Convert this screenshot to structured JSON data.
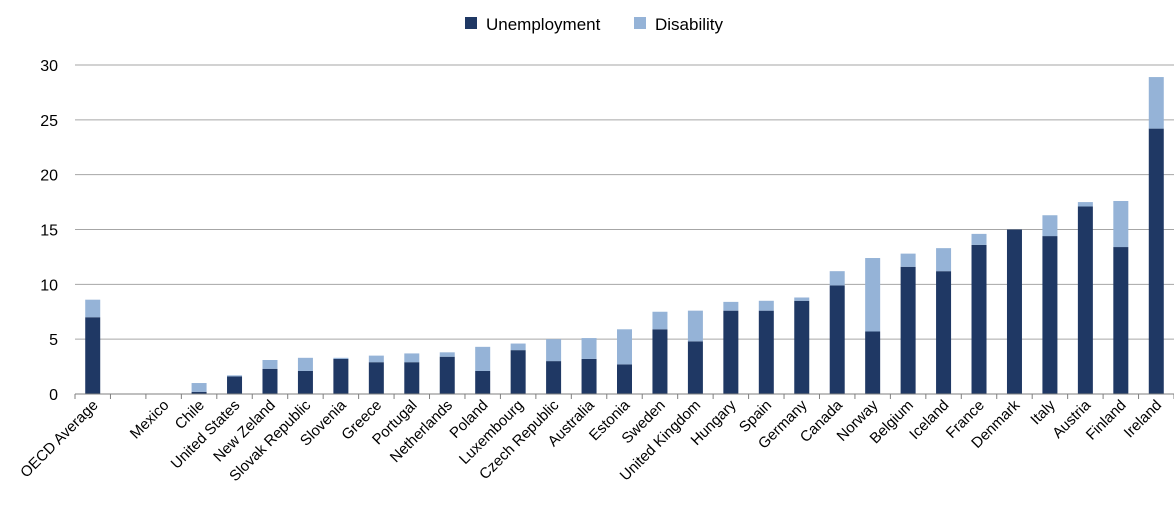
{
  "chart_data": {
    "type": "bar",
    "stacked": true,
    "title": "",
    "xlabel": "",
    "ylabel": "",
    "ylim": [
      0,
      30
    ],
    "yticks": [
      0,
      5,
      10,
      15,
      20,
      25,
      30
    ],
    "grid": true,
    "legend_position": "top-center",
    "categories": [
      "OECD Average",
      "",
      "Mexico",
      "Chile",
      "United States",
      "New Zeland",
      "Slovak Republic",
      "Slovenia",
      "Greece",
      "Portugal",
      "Netherlands",
      "Poland",
      "Luxembourg",
      "Czech Republic",
      "Australia",
      "Estonia",
      "Sweden",
      "United Kingdom",
      "Hungary",
      "Spain",
      "Germany",
      "Canada",
      "Norway",
      "Belgium",
      "Iceland",
      "France",
      "Denmark",
      "Italy",
      "Austria",
      "Finland",
      "Ireland"
    ],
    "series": [
      {
        "name": "Unemployment",
        "color": "#1f3864",
        "values": [
          7.0,
          0,
          0,
          0.2,
          1.6,
          2.3,
          2.1,
          3.2,
          2.9,
          2.9,
          3.4,
          2.1,
          4.0,
          3.0,
          3.2,
          2.7,
          5.9,
          4.8,
          7.6,
          7.6,
          8.5,
          9.9,
          5.7,
          11.6,
          11.2,
          13.6,
          15.0,
          14.4,
          17.1,
          13.4,
          24.2
        ]
      },
      {
        "name": "Disability",
        "color": "#95b3d7",
        "values": [
          1.6,
          0,
          0,
          0.8,
          0.1,
          0.8,
          1.2,
          0.1,
          0.6,
          0.8,
          0.4,
          2.2,
          0.6,
          2.0,
          1.9,
          3.2,
          1.6,
          2.8,
          0.8,
          0.9,
          0.3,
          1.3,
          6.7,
          1.2,
          2.1,
          1.0,
          0.0,
          1.9,
          0.4,
          4.2,
          4.7
        ]
      }
    ]
  }
}
